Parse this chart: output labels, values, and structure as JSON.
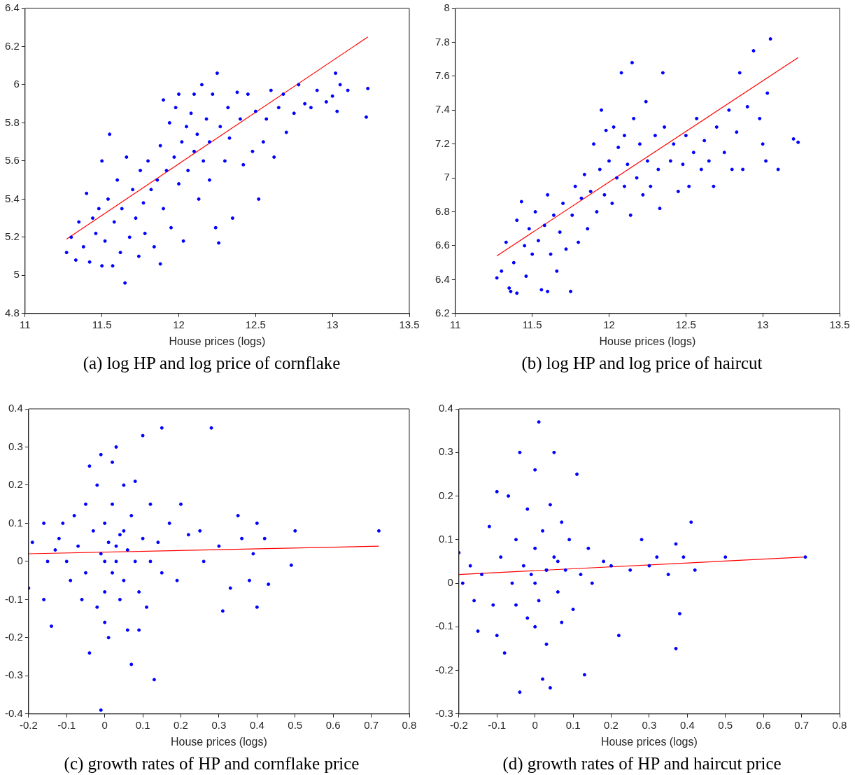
{
  "chart_data": [
    {
      "type": "scatter",
      "title": "(a) log HP and log price of cornflake",
      "xlabel": "House prices (logs)",
      "xlim": [
        11,
        13.5
      ],
      "xticks": [
        11,
        11.5,
        12,
        12.5,
        13,
        13.5
      ],
      "ylim": [
        4.8,
        6.4
      ],
      "yticks": [
        4.8,
        5,
        5.2,
        5.4,
        5.6,
        5.8,
        6,
        6.2,
        6.4
      ],
      "grid": false,
      "legend": false,
      "marker": "circle",
      "series": [
        {
          "type": "scatter",
          "color": "#0000ff",
          "x": [
            11.27,
            11.3,
            11.33,
            11.35,
            11.38,
            11.4,
            11.42,
            11.44,
            11.46,
            11.48,
            11.5,
            11.5,
            11.52,
            11.54,
            11.55,
            11.57,
            11.58,
            11.6,
            11.62,
            11.63,
            11.65,
            11.66,
            11.68,
            11.7,
            11.72,
            11.74,
            11.75,
            11.77,
            11.78,
            11.8,
            11.82,
            11.84,
            11.86,
            11.88,
            11.88,
            11.9,
            11.9,
            11.92,
            11.94,
            11.95,
            11.97,
            11.98,
            12,
            12,
            12.02,
            12.03,
            12.05,
            12.06,
            12.08,
            12.1,
            12.1,
            12.12,
            12.13,
            12.15,
            12.16,
            12.18,
            12.2,
            12.2,
            12.22,
            12.24,
            12.25,
            12.26,
            12.27,
            12.3,
            12.32,
            12.33,
            12.35,
            12.38,
            12.4,
            12.42,
            12.45,
            12.48,
            12.5,
            12.52,
            12.55,
            12.57,
            12.6,
            12.62,
            12.65,
            12.68,
            12.7,
            12.75,
            12.78,
            12.82,
            12.86,
            12.9,
            12.96,
            13,
            13.03,
            13.02,
            13.05,
            13.1,
            13.22,
            13.23
          ],
          "values": [
            5.12,
            5.2,
            5.08,
            5.28,
            5.15,
            5.43,
            5.07,
            5.3,
            5.22,
            5.35,
            5.05,
            5.6,
            5.18,
            5.4,
            5.74,
            5.05,
            5.28,
            5.5,
            5.12,
            5.35,
            4.96,
            5.62,
            5.2,
            5.45,
            5.3,
            5.1,
            5.55,
            5.38,
            5.22,
            5.6,
            5.45,
            5.15,
            5.5,
            5.06,
            5.68,
            5.35,
            5.92,
            5.55,
            5.8,
            5.25,
            5.62,
            5.88,
            5.48,
            5.95,
            5.7,
            5.18,
            5.78,
            5.55,
            5.85,
            5.65,
            5.95,
            5.74,
            5.4,
            6,
            5.6,
            5.82,
            5.5,
            5.7,
            5.95,
            5.25,
            6.06,
            5.17,
            5.78,
            5.6,
            5.88,
            5.72,
            5.3,
            5.96,
            5.82,
            5.58,
            5.95,
            5.65,
            5.86,
            5.4,
            5.7,
            5.82,
            5.97,
            5.62,
            5.88,
            5.95,
            5.75,
            5.85,
            6,
            5.9,
            5.88,
            5.97,
            5.91,
            5.94,
            5.86,
            6.06,
            6,
            5.97,
            5.83,
            5.98
          ]
        },
        {
          "type": "line",
          "color": "#ff0000",
          "marker": "none",
          "line_style": "solid",
          "x": [
            11.27,
            13.23
          ],
          "values": [
            5.19,
            6.25
          ]
        }
      ]
    },
    {
      "type": "scatter",
      "title": "(b) log HP and log price of haircut",
      "xlabel": "House prices (logs)",
      "xlim": [
        11,
        13.5
      ],
      "xticks": [
        11,
        11.5,
        12,
        12.5,
        13,
        13.5
      ],
      "ylim": [
        6.2,
        8
      ],
      "yticks": [
        6.2,
        6.4,
        6.6,
        6.8,
        7,
        7.2,
        7.4,
        7.6,
        7.8,
        8
      ],
      "grid": false,
      "legend": false,
      "marker": "circle",
      "series": [
        {
          "type": "scatter",
          "color": "#0000ff",
          "x": [
            11.27,
            11.3,
            11.33,
            11.35,
            11.36,
            11.38,
            11.4,
            11.4,
            11.43,
            11.45,
            11.46,
            11.48,
            11.5,
            11.52,
            11.54,
            11.56,
            11.58,
            11.6,
            11.6,
            11.62,
            11.64,
            11.66,
            11.68,
            11.7,
            11.72,
            11.75,
            11.76,
            11.78,
            11.8,
            11.82,
            11.84,
            11.86,
            11.88,
            11.9,
            11.92,
            11.94,
            11.95,
            11.97,
            11.98,
            12,
            12.02,
            12.03,
            12.05,
            12.06,
            12.08,
            12.1,
            12.1,
            12.12,
            12.14,
            12.15,
            12.16,
            12.18,
            12.2,
            12.22,
            12.24,
            12.25,
            12.27,
            12.3,
            12.32,
            12.33,
            12.35,
            12.36,
            12.4,
            12.42,
            12.45,
            12.48,
            12.5,
            12.52,
            12.55,
            12.57,
            12.6,
            12.62,
            12.65,
            12.68,
            12.7,
            12.75,
            12.78,
            12.8,
            12.83,
            12.85,
            12.87,
            12.9,
            12.94,
            12.98,
            13,
            13.02,
            13.03,
            13.05,
            13.1,
            13.2,
            13.23
          ],
          "values": [
            6.41,
            6.45,
            6.62,
            6.35,
            6.33,
            6.5,
            6.32,
            6.75,
            6.86,
            6.6,
            6.42,
            6.7,
            6.55,
            6.8,
            6.63,
            6.34,
            6.72,
            6.33,
            6.9,
            6.55,
            6.78,
            6.45,
            6.68,
            6.85,
            6.58,
            6.33,
            6.78,
            6.95,
            6.62,
            6.88,
            7.02,
            6.7,
            6.92,
            7.2,
            6.8,
            7.05,
            7.4,
            6.9,
            7.28,
            7.1,
            6.85,
            7.3,
            7,
            7.18,
            7.62,
            6.95,
            7.25,
            7.08,
            6.78,
            7.68,
            7.35,
            7,
            7.2,
            6.9,
            7.45,
            7.1,
            6.95,
            7.25,
            7.05,
            6.82,
            7.62,
            7.3,
            7.1,
            7.2,
            6.92,
            7.08,
            7.25,
            6.95,
            7.15,
            7.35,
            7.05,
            7.22,
            7.1,
            6.95,
            7.3,
            7.15,
            7.4,
            7.05,
            7.27,
            7.62,
            7.05,
            7.42,
            7.75,
            7.35,
            7.2,
            7.1,
            7.5,
            7.82,
            7.05,
            7.23,
            7.21
          ]
        },
        {
          "type": "line",
          "color": "#ff0000",
          "marker": "none",
          "line_style": "solid",
          "x": [
            11.27,
            13.23
          ],
          "values": [
            6.54,
            7.71
          ]
        }
      ]
    },
    {
      "type": "scatter",
      "title": "(c) growth rates of HP and cornflake price",
      "xlabel": "House prices (logs)",
      "xlim": [
        -0.2,
        0.8
      ],
      "xticks": [
        -0.2,
        -0.1,
        0,
        0.1,
        0.2,
        0.3,
        0.4,
        0.5,
        0.6,
        0.7,
        0.8
      ],
      "ylim": [
        -0.4,
        0.4
      ],
      "yticks": [
        -0.4,
        -0.3,
        -0.2,
        -0.1,
        0,
        0.1,
        0.2,
        0.3,
        0.4
      ],
      "grid": false,
      "legend": false,
      "marker": "circle",
      "series": [
        {
          "type": "scatter",
          "color": "#0000ff",
          "x": [
            -0.2,
            -0.19,
            -0.16,
            -0.16,
            -0.15,
            -0.14,
            -0.13,
            -0.12,
            -0.11,
            -0.1,
            -0.09,
            -0.08,
            -0.07,
            -0.06,
            -0.05,
            -0.05,
            -0.04,
            -0.04,
            -0.03,
            -0.02,
            -0.02,
            -0.01,
            -0.01,
            0,
            0,
            0,
            0.01,
            0.01,
            0.02,
            0.02,
            0.03,
            0.03,
            0.04,
            0.04,
            0.05,
            0.05,
            0.06,
            0.06,
            0.07,
            0.07,
            0.08,
            0.08,
            0.09,
            0.1,
            0.1,
            0.11,
            0.12,
            0.12,
            0.13,
            0.14,
            0.15,
            0.15,
            0.17,
            0.19,
            0.2,
            0.22,
            0.25,
            0.26,
            0.28,
            0.3,
            0.31,
            0.33,
            0.35,
            0.36,
            0.38,
            0.39,
            0.4,
            0.4,
            0.42,
            0.43,
            0.49,
            0.5,
            0.72,
            0.09,
            -0.01,
            0.02,
            0.05,
            0,
            0.03
          ],
          "values": [
            -0.07,
            0.05,
            0.1,
            -0.1,
            0,
            -0.17,
            0.03,
            0.06,
            0.1,
            0,
            -0.05,
            0.12,
            0.04,
            -0.1,
            0.15,
            -0.03,
            0.25,
            -0.24,
            0.08,
            -0.12,
            0.2,
            0.02,
            0.28,
            -0.08,
            0.1,
            -0.16,
            0.05,
            -0.2,
            0.15,
            -0.03,
            0.3,
            0,
            -0.1,
            0.07,
            0.2,
            -0.05,
            0.03,
            -0.18,
            0.12,
            -0.27,
            0,
            0.21,
            -0.08,
            0.06,
            0.33,
            -0.12,
            0.15,
            0,
            -0.31,
            0.05,
            0.35,
            -0.03,
            0.1,
            -0.05,
            0.15,
            0.07,
            0.08,
            0,
            0.35,
            0.04,
            -0.13,
            -0.07,
            0.12,
            0.06,
            -0.05,
            0.02,
            -0.12,
            0.1,
            0.06,
            -0.06,
            -0.01,
            0.08,
            0.08,
            -0.18,
            -0.39,
            0.26,
            0.08,
            0,
            0.04
          ]
        },
        {
          "type": "line",
          "color": "#ff0000",
          "marker": "none",
          "line_style": "solid",
          "x": [
            -0.2,
            0.72
          ],
          "values": [
            0.02,
            0.04
          ]
        }
      ]
    },
    {
      "type": "scatter",
      "title": "(d) growth rates of HP and haircut price",
      "xlabel": "House prices (logs)",
      "xlim": [
        -0.2,
        0.8
      ],
      "xticks": [
        -0.2,
        -0.1,
        0,
        0.1,
        0.2,
        0.3,
        0.4,
        0.5,
        0.6,
        0.7,
        0.8
      ],
      "ylim": [
        -0.3,
        0.4
      ],
      "yticks": [
        -0.3,
        -0.2,
        -0.1,
        0,
        0.1,
        0.2,
        0.3,
        0.4
      ],
      "grid": false,
      "legend": false,
      "marker": "circle",
      "series": [
        {
          "type": "scatter",
          "color": "#0000ff",
          "x": [
            -0.2,
            -0.19,
            -0.17,
            -0.16,
            -0.15,
            -0.14,
            -0.12,
            -0.11,
            -0.1,
            -0.1,
            -0.09,
            -0.08,
            -0.07,
            -0.06,
            -0.05,
            -0.05,
            -0.04,
            -0.04,
            -0.03,
            -0.02,
            -0.02,
            -0.01,
            0,
            0,
            0,
            0.01,
            0.01,
            0.02,
            0.02,
            0.03,
            0.03,
            0.04,
            0.04,
            0.05,
            0.05,
            0.06,
            0.07,
            0.07,
            0.08,
            0.09,
            0.1,
            0.11,
            0.12,
            0.13,
            0.14,
            0.15,
            0.18,
            0.2,
            0.22,
            0.25,
            0.28,
            0.3,
            0.32,
            0.35,
            0.37,
            0.37,
            0.38,
            0.39,
            0.41,
            0.42,
            0.5,
            0.71,
            0.03,
            0.06,
            0
          ],
          "values": [
            0.07,
            0,
            0.04,
            -0.04,
            -0.11,
            0.02,
            0.13,
            -0.05,
            0.21,
            -0.12,
            0.06,
            -0.16,
            0.2,
            0,
            0.1,
            -0.05,
            0.3,
            -0.25,
            0.04,
            0.17,
            -0.08,
            0.02,
            0.26,
            -0.1,
            0.08,
            0.37,
            -0.04,
            0.12,
            -0.22,
            0.03,
            -0.14,
            0.18,
            -0.24,
            0.06,
            0.3,
            -0.02,
            0.14,
            -0.09,
            0.03,
            0.1,
            -0.06,
            0.25,
            0.02,
            -0.21,
            0.08,
            0,
            0.05,
            0.04,
            -0.12,
            0.03,
            0.1,
            0.04,
            0.06,
            0.02,
            0.09,
            -0.15,
            -0.07,
            0.06,
            0.14,
            0.03,
            0.06,
            0.06,
            0.03,
            0.05,
            0
          ]
        },
        {
          "type": "line",
          "color": "#ff0000",
          "marker": "none",
          "line_style": "solid",
          "x": [
            -0.2,
            0.71
          ],
          "values": [
            0.02,
            0.06
          ]
        }
      ]
    }
  ]
}
